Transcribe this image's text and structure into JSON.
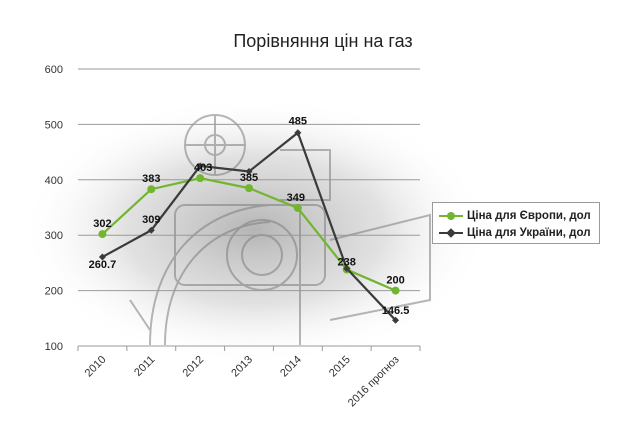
{
  "colors": {
    "europe": "#72b531",
    "ukraine": "#3b3b3b",
    "grid": "#9a9a9a"
  },
  "chart_data": {
    "type": "line",
    "title": "Порівняння цін на газ",
    "categories": [
      "2010",
      "2011",
      "2012",
      "2013",
      "2014",
      "2015",
      "2016 прогноз"
    ],
    "ylim": [
      100,
      600
    ],
    "yticks": [
      "600",
      "500",
      "400",
      "300",
      "200",
      "100"
    ],
    "grid": true,
    "legend_position": "right",
    "series": [
      {
        "name": "Ціна для Європи, дол",
        "values": [
          302,
          383,
          403,
          385,
          349,
          238,
          200
        ],
        "labels": [
          "302",
          "383",
          "403",
          "385",
          "349",
          "238",
          "200"
        ],
        "marker": "circle"
      },
      {
        "name": "Ціна для України, дол",
        "values": [
          260.7,
          309,
          425,
          415,
          485,
          240,
          146.5
        ],
        "labels": [
          "260.7",
          "309",
          "",
          "",
          "485",
          "",
          "146.5"
        ],
        "marker": "diamond"
      }
    ]
  }
}
